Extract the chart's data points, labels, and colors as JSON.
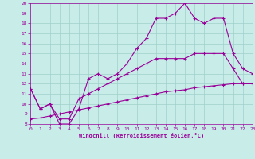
{
  "xlabel": "Windchill (Refroidissement éolien,°C)",
  "xlim": [
    0,
    23
  ],
  "ylim": [
    8,
    20
  ],
  "xticks": [
    0,
    1,
    2,
    3,
    4,
    5,
    6,
    7,
    8,
    9,
    10,
    11,
    12,
    13,
    14,
    15,
    16,
    17,
    18,
    19,
    20,
    21,
    22,
    23
  ],
  "yticks": [
    8,
    9,
    10,
    11,
    12,
    13,
    14,
    15,
    16,
    17,
    18,
    19,
    20
  ],
  "bg_color": "#c8ece8",
  "line_color": "#990099",
  "grid_color": "#a0d0cc",
  "line1_x": [
    0,
    1,
    2,
    3,
    4,
    5,
    6,
    7,
    8,
    9,
    10,
    11,
    12,
    13,
    14,
    15,
    16,
    17,
    18,
    19,
    20,
    21,
    22,
    23
  ],
  "line1_y": [
    11.5,
    9.5,
    10.0,
    8.0,
    8.0,
    9.5,
    12.5,
    13.0,
    12.5,
    13.0,
    14.0,
    15.5,
    16.5,
    18.5,
    18.5,
    19.0,
    20.0,
    18.5,
    18.0,
    18.5,
    18.5,
    15.0,
    13.5,
    13.0
  ],
  "line2_x": [
    0,
    1,
    2,
    3,
    4,
    5,
    6,
    7,
    8,
    9,
    10,
    11,
    12,
    13,
    14,
    15,
    16,
    17,
    18,
    19,
    20,
    21,
    22,
    23
  ],
  "line2_y": [
    11.5,
    9.5,
    10.0,
    8.5,
    8.5,
    10.5,
    11.0,
    11.5,
    12.0,
    12.5,
    13.0,
    13.5,
    14.0,
    14.5,
    14.5,
    14.5,
    14.5,
    15.0,
    15.0,
    15.0,
    15.0,
    13.5,
    12.0,
    12.0
  ],
  "line3_x": [
    0,
    1,
    2,
    3,
    4,
    5,
    6,
    7,
    8,
    9,
    10,
    11,
    12,
    13,
    14,
    15,
    16,
    17,
    18,
    19,
    20,
    21,
    22,
    23
  ],
  "line3_y": [
    8.5,
    8.6,
    8.8,
    9.0,
    9.2,
    9.4,
    9.6,
    9.8,
    10.0,
    10.2,
    10.4,
    10.6,
    10.8,
    11.0,
    11.2,
    11.3,
    11.4,
    11.6,
    11.7,
    11.8,
    11.9,
    12.0,
    12.0,
    12.0
  ],
  "marker": "+",
  "markersize": 3,
  "markeredgewidth": 0.8,
  "linewidth": 0.8
}
